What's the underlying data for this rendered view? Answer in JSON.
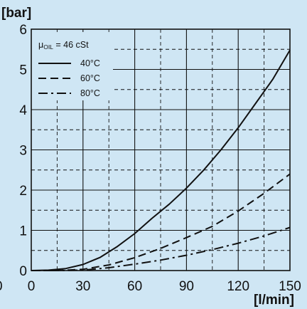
{
  "chart_data": {
    "type": "line",
    "ylabel": "[bar]",
    "xlabel": "[l/min]",
    "xlim": [
      0,
      150
    ],
    "ylim": [
      0,
      6
    ],
    "x_ticks": [
      0,
      30,
      60,
      90,
      120,
      150
    ],
    "y_ticks": [
      0,
      1,
      2,
      3,
      4,
      5,
      6
    ],
    "x_tick_labels": [
      "0",
      "30",
      "60",
      "90",
      "120",
      "150"
    ],
    "y_tick_labels": [
      "0",
      "1",
      "2",
      "3",
      "4",
      "5",
      "6"
    ],
    "extra_left_label": "0",
    "grid": true,
    "viscosity": {
      "symbol": "μ",
      "subscript": "OIL",
      "value": " = 46 cSt"
    },
    "legend_position": "top-left",
    "series": [
      {
        "name": "40°C",
        "dash": "solid",
        "x": [
          0,
          10,
          20,
          30,
          40,
          50,
          60,
          70,
          80,
          90,
          100,
          110,
          120,
          130,
          140,
          150
        ],
        "y": [
          0,
          0.01,
          0.05,
          0.15,
          0.33,
          0.6,
          0.92,
          1.3,
          1.65,
          2.05,
          2.5,
          3.0,
          3.55,
          4.15,
          4.75,
          5.48
        ]
      },
      {
        "name": "60°C",
        "dash": "dashed",
        "x": [
          0,
          15,
          30,
          45,
          60,
          75,
          90,
          105,
          120,
          135,
          150
        ],
        "y": [
          0,
          0.0,
          0.03,
          0.14,
          0.32,
          0.55,
          0.82,
          1.1,
          1.48,
          1.92,
          2.4
        ]
      },
      {
        "name": "80°C",
        "dash": "dash-dot",
        "x": [
          0,
          15,
          30,
          45,
          60,
          75,
          90,
          105,
          120,
          135,
          150
        ],
        "y": [
          0,
          0.0,
          0.01,
          0.07,
          0.16,
          0.26,
          0.38,
          0.52,
          0.68,
          0.86,
          1.07
        ]
      }
    ]
  }
}
